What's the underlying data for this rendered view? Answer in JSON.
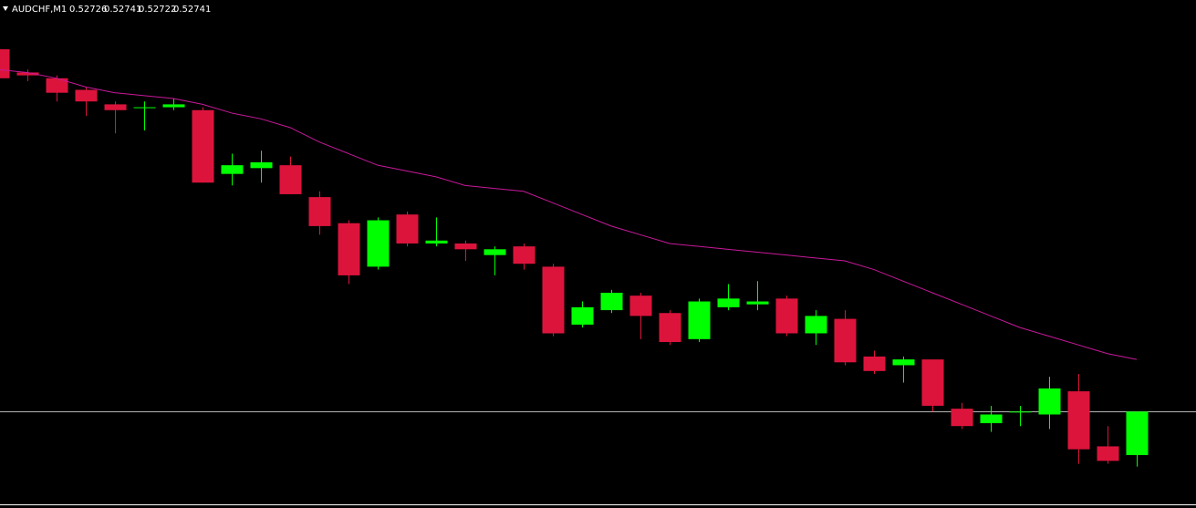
{
  "chart_data": {
    "type": "candlestick",
    "title": "AUDCHF,M1",
    "open": [
      0.52866,
      0.52858,
      0.52856,
      0.52852,
      0.52847,
      0.52846,
      0.52846,
      0.52845,
      0.52823,
      0.52825,
      0.52826,
      0.52815,
      0.52806,
      0.52791,
      0.52809,
      0.52799,
      0.52799,
      0.52795,
      0.52798,
      0.52791,
      0.52771,
      0.52776,
      0.52781,
      0.52775,
      0.52766,
      0.52777,
      0.52778,
      0.5278,
      0.52768,
      0.52773,
      0.5276,
      0.52757,
      0.52759,
      0.52742,
      0.52737,
      0.52741,
      0.5274,
      0.52748,
      0.52729,
      0.52726
    ],
    "high": [
      0.52866,
      0.52859,
      0.52857,
      0.52853,
      0.52848,
      0.52848,
      0.52849,
      0.52846,
      0.5283,
      0.52831,
      0.52829,
      0.52817,
      0.52807,
      0.52808,
      0.5281,
      0.52808,
      0.528,
      0.52798,
      0.52799,
      0.52792,
      0.52779,
      0.52783,
      0.52782,
      0.52776,
      0.5278,
      0.52785,
      0.52786,
      0.52781,
      0.52776,
      0.52776,
      0.52762,
      0.5276,
      0.52759,
      0.52744,
      0.52743,
      0.52743,
      0.52753,
      0.52754,
      0.52736,
      0.52741
    ],
    "low": [
      0.52856,
      0.52855,
      0.52848,
      0.52843,
      0.52837,
      0.52838,
      0.52845,
      0.5282,
      0.52819,
      0.5282,
      0.52816,
      0.52802,
      0.52785,
      0.5279,
      0.52798,
      0.52798,
      0.52793,
      0.52788,
      0.5279,
      0.52767,
      0.5277,
      0.52775,
      0.52766,
      0.52764,
      0.52765,
      0.52776,
      0.52776,
      0.52767,
      0.52764,
      0.52757,
      0.52754,
      0.52751,
      0.52741,
      0.52735,
      0.52734,
      0.52736,
      0.52735,
      0.52723,
      0.52723,
      0.52722
    ],
    "close": [
      0.52856,
      0.52857,
      0.52851,
      0.52848,
      0.52845,
      0.52846,
      0.52847,
      0.5282,
      0.52826,
      0.52827,
      0.52816,
      0.52805,
      0.52788,
      0.52807,
      0.52799,
      0.528,
      0.52797,
      0.52797,
      0.52792,
      0.52768,
      0.52777,
      0.52782,
      0.52774,
      0.52765,
      0.52779,
      0.5278,
      0.52779,
      0.52768,
      0.52774,
      0.52758,
      0.52755,
      0.52759,
      0.52743,
      0.52736,
      0.5274,
      0.52741,
      0.52749,
      0.52728,
      0.52724,
      0.52741
    ],
    "ma": {
      "color": "#c8199b",
      "values": [
        0.52859,
        0.52858,
        0.52856,
        0.52853,
        0.52851,
        0.5285,
        0.52849,
        0.52847,
        0.52844,
        0.52842,
        0.52839,
        0.52834,
        0.5283,
        0.52826,
        0.52824,
        0.52822,
        0.52819,
        0.52818,
        0.52817,
        0.52813,
        0.52809,
        0.52805,
        0.52802,
        0.52799,
        0.52798,
        0.52797,
        0.52796,
        0.52795,
        0.52794,
        0.52793,
        0.5279,
        0.52786,
        0.52782,
        0.52778,
        0.52774,
        0.5277,
        0.52767,
        0.52764,
        0.52761,
        0.52759
      ]
    },
    "up_color": "#00ff00",
    "down_color": "#dc143c",
    "bid_line_color": "#b4b4b4",
    "ylim": [
      0.52709,
      0.52883
    ]
  }
}
